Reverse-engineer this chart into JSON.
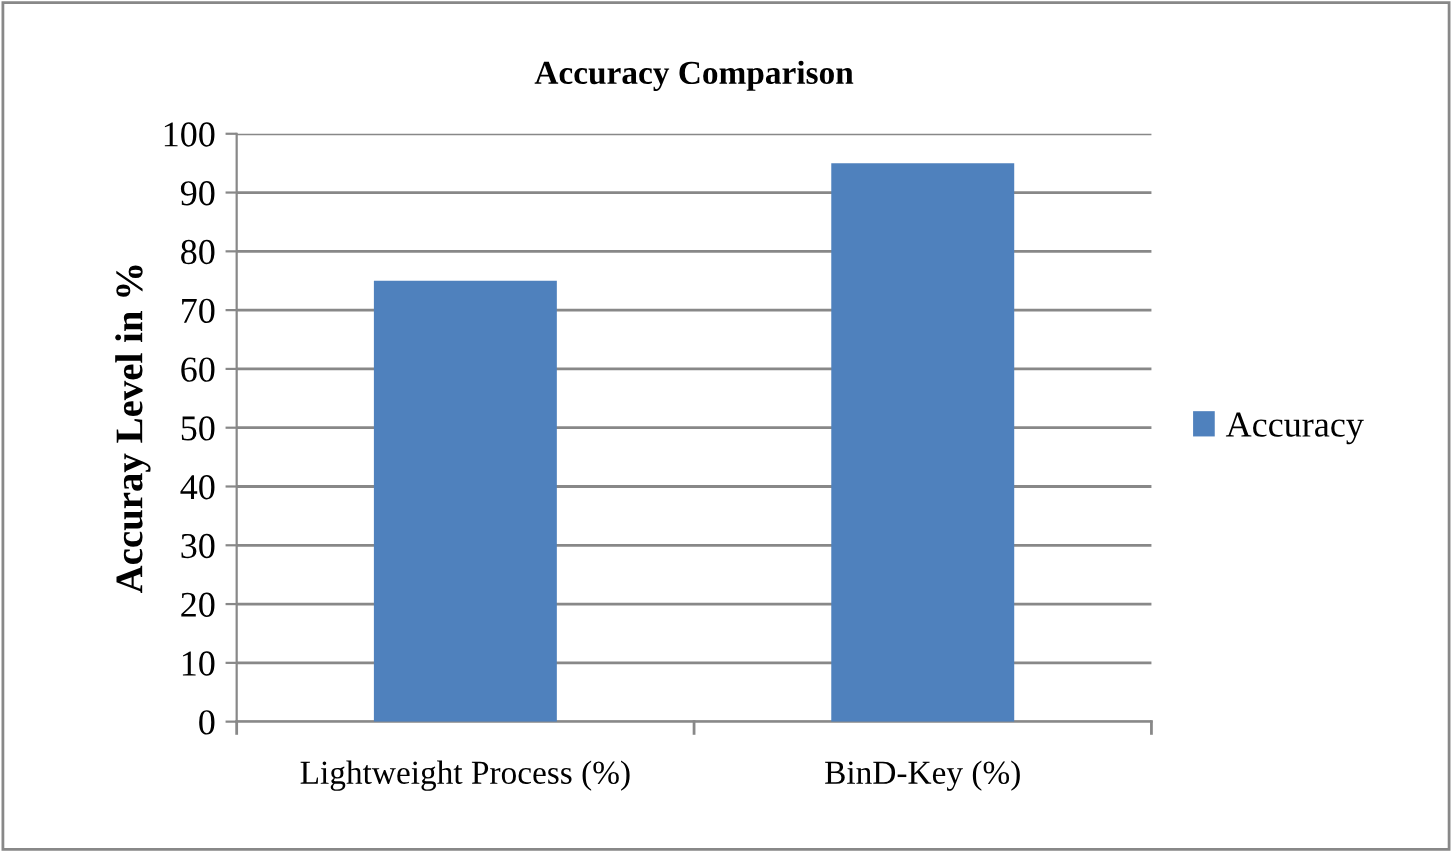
{
  "chart_data": {
    "type": "bar",
    "title": "Accuracy Comparison",
    "ylabel": "Accuray Level in %",
    "categories": [
      "Lightweight Process (%)",
      "BinD-Key (%)"
    ],
    "series": [
      {
        "name": "Accuracy",
        "color": "#4f81bd",
        "values": [
          75,
          95
        ]
      }
    ],
    "ylim": [
      0,
      100
    ],
    "yticks": [
      0,
      10,
      20,
      30,
      40,
      50,
      60,
      70,
      80,
      90,
      100
    ],
    "grid": "y",
    "legend": "right"
  }
}
